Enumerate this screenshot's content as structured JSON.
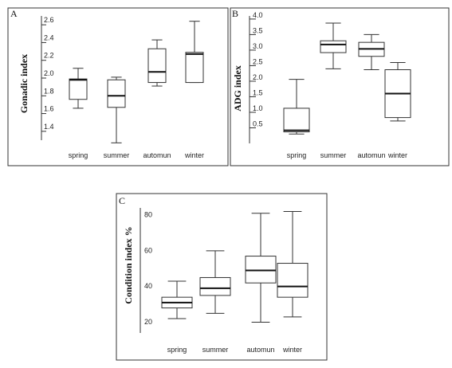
{
  "chart_data": [
    {
      "type": "box",
      "panel": "A",
      "ylabel": "Gonadic index",
      "categories": [
        "spring",
        "summer",
        "automun",
        "winter"
      ],
      "yticks": [
        "1.4",
        "1.6",
        "1.8",
        "2.0",
        "2.2",
        "2.4",
        "2.6"
      ],
      "ylim": [
        1.3,
        2.7
      ],
      "boxes": [
        {
          "min": 1.66,
          "q1": 1.76,
          "median": 1.98,
          "q3": 1.99,
          "max": 2.11
        },
        {
          "min": 1.27,
          "q1": 1.67,
          "median": 1.8,
          "q3": 1.98,
          "max": 2.01
        },
        {
          "min": 1.91,
          "q1": 1.95,
          "median": 2.07,
          "q3": 2.33,
          "max": 2.43
        },
        {
          "min": 1.95,
          "q1": 1.95,
          "median": 2.27,
          "q3": 2.29,
          "max": 2.64
        }
      ]
    },
    {
      "type": "box",
      "panel": "B",
      "ylabel": "ADG index",
      "categories": [
        "spring",
        "summer",
        "automun",
        "winter"
      ],
      "yticks": [
        "0.5",
        "1.0",
        "1.5",
        "2.0",
        "2.5",
        "3.0",
        "3.5",
        "4.0"
      ],
      "ylim": [
        0,
        4.1
      ],
      "boxes": [
        {
          "min": 0.3,
          "q1": 0.37,
          "median": 0.42,
          "q3": 1.13,
          "max": 2.06
        },
        {
          "min": 2.4,
          "q1": 2.92,
          "median": 3.18,
          "q3": 3.3,
          "max": 3.87
        },
        {
          "min": 2.37,
          "q1": 2.8,
          "median": 3.04,
          "q3": 3.25,
          "max": 3.5
        },
        {
          "min": 0.72,
          "q1": 0.83,
          "median": 1.6,
          "q3": 2.37,
          "max": 2.6
        }
      ]
    },
    {
      "type": "box",
      "panel": "C",
      "ylabel": "Condition index %",
      "categories": [
        "spring",
        "summer",
        "automun",
        "winter"
      ],
      "yticks": [
        "20",
        "40",
        "60",
        "80"
      ],
      "ylim": [
        16,
        86
      ],
      "boxes": [
        {
          "min": 24,
          "q1": 30,
          "median": 33,
          "q3": 36,
          "max": 45
        },
        {
          "min": 27,
          "q1": 37,
          "median": 41,
          "q3": 47,
          "max": 62
        },
        {
          "min": 22,
          "q1": 44,
          "median": 51,
          "q3": 59,
          "max": 83
        },
        {
          "min": 25,
          "q1": 36,
          "median": 42,
          "q3": 55,
          "max": 84
        }
      ]
    }
  ]
}
